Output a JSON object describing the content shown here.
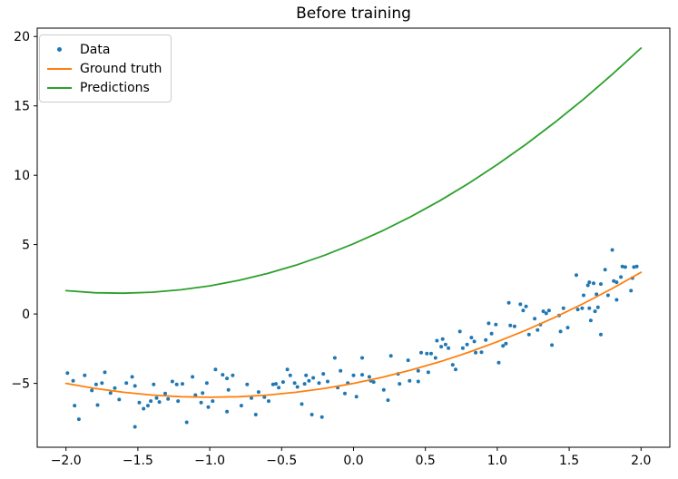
{
  "chart_data": {
    "type": "scatter",
    "title": "Before training",
    "xlabel": "",
    "ylabel": "",
    "grid": false,
    "legend_position": "upper-left",
    "xlim": [
      -2.2,
      2.2
    ],
    "ylim": [
      -9.6,
      20.6
    ],
    "xticks": {
      "values": [
        -2.0,
        -1.5,
        -1.0,
        -0.5,
        0.0,
        0.5,
        1.0,
        1.5,
        2.0
      ],
      "labels": [
        "−2.0",
        "−1.5",
        "−1.0",
        "−0.5",
        "0.0",
        "0.5",
        "1.0",
        "1.5",
        "2.0"
      ]
    },
    "yticks": {
      "values": [
        -5,
        0,
        5,
        10,
        15,
        20
      ],
      "labels": [
        "−5",
        "0",
        "5",
        "10",
        "15",
        "20"
      ]
    },
    "series": [
      {
        "name": "Data",
        "type": "scatter",
        "color": "#1f77b4",
        "points": [
          [
            -1.99,
            -4.25
          ],
          [
            -1.95,
            -4.81
          ],
          [
            -1.87,
            -4.42
          ],
          [
            -1.82,
            -5.51
          ],
          [
            -1.94,
            -6.6
          ],
          [
            -1.91,
            -7.58
          ],
          [
            -1.79,
            -5.07
          ],
          [
            -1.75,
            -4.97
          ],
          [
            -1.73,
            -4.2
          ],
          [
            -1.78,
            -6.56
          ],
          [
            -1.69,
            -5.69
          ],
          [
            -1.66,
            -5.34
          ],
          [
            -1.63,
            -6.16
          ],
          [
            -1.58,
            -4.97
          ],
          [
            -1.54,
            -4.53
          ],
          [
            -1.52,
            -5.18
          ],
          [
            -1.49,
            -6.38
          ],
          [
            -1.52,
            -8.13
          ],
          [
            -1.46,
            -6.82
          ],
          [
            -1.43,
            -6.6
          ],
          [
            -1.41,
            -6.27
          ],
          [
            -1.39,
            -5.07
          ],
          [
            -1.37,
            -6.05
          ],
          [
            -1.35,
            -6.34
          ],
          [
            -1.31,
            -5.73
          ],
          [
            -1.29,
            -6.12
          ],
          [
            -1.26,
            -4.86
          ],
          [
            -1.23,
            -5.07
          ],
          [
            -1.22,
            -6.27
          ],
          [
            -1.19,
            -5.03
          ],
          [
            -1.16,
            -7.8
          ],
          [
            -1.12,
            -4.53
          ],
          [
            -1.1,
            -5.84
          ],
          [
            -1.05,
            -5.69
          ],
          [
            -1.06,
            -6.38
          ],
          [
            -1.02,
            -4.97
          ],
          [
            -1.01,
            -6.71
          ],
          [
            -0.98,
            -6.27
          ],
          [
            -0.96,
            -4.0
          ],
          [
            -0.91,
            -4.38
          ],
          [
            -0.88,
            -4.64
          ],
          [
            -0.87,
            -5.46
          ],
          [
            -0.84,
            -4.42
          ],
          [
            -0.88,
            -7.03
          ],
          [
            -0.78,
            -6.6
          ],
          [
            -0.74,
            -5.07
          ],
          [
            -0.71,
            -6.05
          ],
          [
            -0.68,
            -7.25
          ],
          [
            -0.66,
            -5.62
          ],
          [
            -0.62,
            -5.99
          ],
          [
            -0.59,
            -6.27
          ],
          [
            -0.56,
            -5.07
          ],
          [
            -0.54,
            -5.03
          ],
          [
            -0.52,
            -5.3
          ],
          [
            -0.49,
            -4.9
          ],
          [
            -0.46,
            -3.99
          ],
          [
            -0.44,
            -4.42
          ],
          [
            -0.41,
            -4.97
          ],
          [
            -0.39,
            -5.25
          ],
          [
            -0.33,
            -4.42
          ],
          [
            -0.34,
            -5.03
          ],
          [
            -0.31,
            -4.81
          ],
          [
            -0.28,
            -4.6
          ],
          [
            -0.24,
            -4.97
          ],
          [
            -0.21,
            -4.31
          ],
          [
            -0.18,
            -4.86
          ],
          [
            -0.36,
            -6.49
          ],
          [
            -0.29,
            -7.25
          ],
          [
            -0.22,
            -7.42
          ],
          [
            -0.13,
            -3.16
          ],
          [
            -0.09,
            -4.09
          ],
          [
            -0.11,
            -5.3
          ],
          [
            -0.06,
            -5.73
          ],
          [
            -0.04,
            -4.97
          ],
          [
            0.0,
            -4.42
          ],
          [
            0.06,
            -3.16
          ],
          [
            0.06,
            -4.38
          ],
          [
            0.11,
            -4.53
          ],
          [
            0.12,
            -4.81
          ],
          [
            0.14,
            -4.9
          ],
          [
            0.02,
            -5.95
          ],
          [
            0.21,
            -5.46
          ],
          [
            0.24,
            -6.21
          ],
          [
            0.26,
            -3.01
          ],
          [
            0.31,
            -4.31
          ],
          [
            0.32,
            -5.03
          ],
          [
            0.38,
            -3.33
          ],
          [
            0.39,
            -4.81
          ],
          [
            0.45,
            -4.09
          ],
          [
            0.45,
            -4.86
          ],
          [
            0.47,
            -2.79
          ],
          [
            0.51,
            -2.85
          ],
          [
            0.54,
            -2.85
          ],
          [
            0.52,
            -4.2
          ],
          [
            0.57,
            -3.16
          ],
          [
            0.58,
            -1.92
          ],
          [
            0.61,
            -2.35
          ],
          [
            0.62,
            -1.8
          ],
          [
            0.64,
            -2.2
          ],
          [
            0.66,
            -2.46
          ],
          [
            0.69,
            -3.66
          ],
          [
            0.71,
            -3.99
          ],
          [
            0.74,
            -1.26
          ],
          [
            0.76,
            -2.46
          ],
          [
            0.79,
            -2.2
          ],
          [
            0.82,
            -1.7
          ],
          [
            0.84,
            -1.98
          ],
          [
            0.85,
            -2.79
          ],
          [
            0.89,
            -2.75
          ],
          [
            0.92,
            -1.87
          ],
          [
            0.94,
            -0.67
          ],
          [
            0.96,
            -1.41
          ],
          [
            0.99,
            -0.76
          ],
          [
            1.01,
            -3.5
          ],
          [
            1.04,
            -2.29
          ],
          [
            1.06,
            -2.13
          ],
          [
            1.08,
            0.81
          ],
          [
            1.16,
            0.7
          ],
          [
            1.18,
            0.26
          ],
          [
            1.2,
            0.55
          ],
          [
            1.09,
            -0.82
          ],
          [
            1.12,
            -0.89
          ],
          [
            1.22,
            -1.48
          ],
          [
            1.26,
            -0.33
          ],
          [
            1.28,
            -1.15
          ],
          [
            1.3,
            -0.76
          ],
          [
            1.32,
            0.2
          ],
          [
            1.34,
            0.05
          ],
          [
            1.36,
            0.26
          ],
          [
            1.38,
            -2.24
          ],
          [
            1.43,
            -0.1
          ],
          [
            1.44,
            -1.26
          ],
          [
            1.46,
            0.42
          ],
          [
            1.49,
            -0.98
          ],
          [
            1.55,
            2.81
          ],
          [
            1.56,
            0.33
          ],
          [
            1.59,
            0.42
          ],
          [
            1.6,
            1.35
          ],
          [
            1.63,
            2.07
          ],
          [
            1.65,
            -0.46
          ],
          [
            1.68,
            0.2
          ],
          [
            1.8,
            4.62
          ],
          [
            1.75,
            3.2
          ],
          [
            1.87,
            3.43
          ],
          [
            1.89,
            3.38
          ],
          [
            1.95,
            3.38
          ],
          [
            1.97,
            3.43
          ],
          [
            1.67,
            2.22
          ],
          [
            1.72,
            2.16
          ],
          [
            1.81,
            2.38
          ],
          [
            1.83,
            2.29
          ],
          [
            1.86,
            2.66
          ],
          [
            1.94,
            2.59
          ],
          [
            1.64,
            2.29
          ],
          [
            1.69,
            1.42
          ],
          [
            1.77,
            1.35
          ],
          [
            1.83,
            1.02
          ],
          [
            1.93,
            1.68
          ],
          [
            1.64,
            0.42
          ],
          [
            1.7,
            0.48
          ],
          [
            1.72,
            -1.48
          ]
        ]
      },
      {
        "name": "Ground truth",
        "type": "line",
        "color": "#ff7f0e",
        "points": [
          [
            -2.0,
            -5.0
          ],
          [
            -1.8,
            -5.36
          ],
          [
            -1.6,
            -5.64
          ],
          [
            -1.4,
            -5.84
          ],
          [
            -1.2,
            -5.96
          ],
          [
            -1.0,
            -6.0
          ],
          [
            -0.8,
            -5.96
          ],
          [
            -0.6,
            -5.84
          ],
          [
            -0.4,
            -5.64
          ],
          [
            -0.2,
            -5.36
          ],
          [
            0.0,
            -5.0
          ],
          [
            0.2,
            -4.56
          ],
          [
            0.4,
            -4.04
          ],
          [
            0.6,
            -3.44
          ],
          [
            0.8,
            -2.76
          ],
          [
            1.0,
            -2.0
          ],
          [
            1.2,
            -1.16
          ],
          [
            1.4,
            -0.24
          ],
          [
            1.6,
            0.76
          ],
          [
            1.8,
            1.84
          ],
          [
            2.0,
            3.0
          ]
        ]
      },
      {
        "name": "Predictions",
        "type": "line",
        "color": "#2ca02c",
        "points": [
          [
            -2.0,
            1.68
          ],
          [
            -1.8,
            1.53
          ],
          [
            -1.6,
            1.5
          ],
          [
            -1.4,
            1.57
          ],
          [
            -1.2,
            1.75
          ],
          [
            -1.0,
            2.03
          ],
          [
            -0.8,
            2.42
          ],
          [
            -0.6,
            2.92
          ],
          [
            -0.4,
            3.52
          ],
          [
            -0.2,
            4.24
          ],
          [
            0.0,
            5.06
          ],
          [
            0.2,
            5.99
          ],
          [
            0.4,
            7.02
          ],
          [
            0.6,
            8.16
          ],
          [
            0.8,
            9.41
          ],
          [
            1.0,
            10.77
          ],
          [
            1.2,
            12.23
          ],
          [
            1.4,
            13.81
          ],
          [
            1.6,
            15.48
          ],
          [
            1.8,
            17.27
          ],
          [
            2.0,
            19.16
          ]
        ]
      }
    ]
  }
}
